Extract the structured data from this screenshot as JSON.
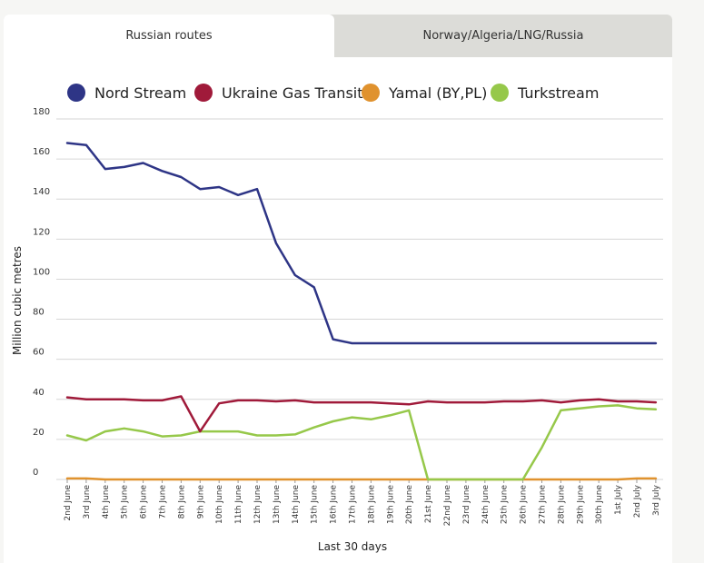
{
  "tabs": [
    {
      "label": "Russian routes",
      "active": true
    },
    {
      "label": "Norway/Algeria/LNG/Russia",
      "active": false
    }
  ],
  "colors": {
    "nord_stream": "#2e3586",
    "ukraine": "#a01a3a",
    "yamal": "#e0922e",
    "turkstream": "#96c84a",
    "grid": "#d6d6d6",
    "axis_text": "#333333"
  },
  "chart_data": {
    "type": "line",
    "title": "",
    "xlabel": "Last 30 days",
    "ylabel": "Million cubic metres",
    "ylim": [
      0,
      180
    ],
    "yticks": [
      0,
      20,
      40,
      60,
      80,
      100,
      120,
      140,
      160,
      180
    ],
    "grid": true,
    "legend_position": "top",
    "categories": [
      "2nd June",
      "3rd June",
      "4th June",
      "5th June",
      "6th June",
      "7th June",
      "8th June",
      "9th June",
      "10th June",
      "11th June",
      "12th June",
      "13th June",
      "14th June",
      "15th June",
      "16th June",
      "17th June",
      "18th June",
      "19th June",
      "20th June",
      "21st June",
      "22nd June",
      "23rd June",
      "24th June",
      "25th June",
      "26th June",
      "27th June",
      "28th June",
      "29th June",
      "30th June",
      "1st July",
      "2nd July",
      "3rd July"
    ],
    "series": [
      {
        "name": "Nord Stream",
        "color": "#2e3586",
        "values": [
          168,
          167,
          155,
          156,
          158,
          154,
          151,
          145,
          146,
          142,
          145,
          118,
          102,
          96,
          70,
          68,
          68,
          68,
          68,
          68,
          68,
          68,
          68,
          68,
          68,
          68,
          68,
          68,
          68,
          68,
          68,
          68
        ]
      },
      {
        "name": "Ukraine Gas Transit",
        "color": "#a01a3a",
        "values": [
          41,
          40,
          40,
          40,
          39.5,
          39.5,
          41.5,
          24,
          38,
          39.5,
          39.5,
          39,
          39.5,
          38.5,
          38.5,
          38.5,
          38.5,
          38,
          37.5,
          39,
          38.5,
          38.5,
          38.5,
          39,
          39,
          39.5,
          38.5,
          39.5,
          40,
          39,
          39,
          38.5
        ]
      },
      {
        "name": "Yamal (BY,PL)",
        "color": "#e0922e",
        "values": [
          0.5,
          0.5,
          0,
          0,
          0,
          0,
          0,
          0,
          0,
          0,
          0,
          0,
          0,
          0,
          0,
          0,
          0,
          0,
          0,
          0,
          0,
          0,
          0,
          0,
          0,
          0,
          0,
          0,
          0,
          0,
          0.5,
          0.5
        ]
      },
      {
        "name": "Turkstream",
        "color": "#96c84a",
        "values": [
          22,
          19.5,
          24,
          25.5,
          24,
          21.5,
          22,
          24,
          24,
          24,
          22,
          22,
          22.5,
          26,
          29,
          31,
          30,
          32,
          34.5,
          0,
          0,
          0,
          0,
          0,
          0,
          16,
          34.5,
          35.5,
          36.5,
          37,
          35.5,
          35
        ]
      }
    ]
  }
}
